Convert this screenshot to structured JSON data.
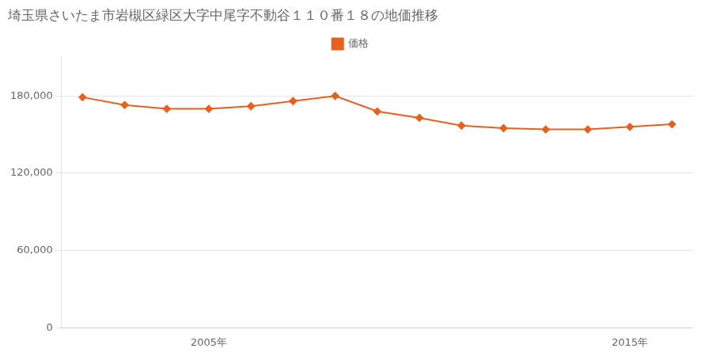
{
  "chart_data": {
    "type": "line",
    "title": "埼玉県さいたま市岩槻区緑区大字中尾字不動谷１１０番１８の地価推移",
    "x": [
      2002,
      2003,
      2004,
      2005,
      2006,
      2007,
      2008,
      2009,
      2010,
      2011,
      2012,
      2013,
      2014,
      2015,
      2016
    ],
    "series": [
      {
        "name": "価格",
        "color": "#e8601c",
        "marker": "diamond",
        "line_style": "solid",
        "values": [
          179000,
          173000,
          170000,
          170000,
          172000,
          176000,
          180000,
          168000,
          163000,
          157000,
          155000,
          154000,
          154000,
          156000,
          158000
        ]
      }
    ],
    "xlim": [
      2001.5,
      2016.5
    ],
    "xticks": [
      {
        "value": 2005,
        "label": "2005年"
      },
      {
        "value": 2015,
        "label": "2015年"
      }
    ],
    "ylim": [
      0,
      210000
    ],
    "yticks": [
      0,
      {
        "value": 60000,
        "label": "60,000"
      },
      {
        "value": 120000,
        "label": "120,000"
      },
      {
        "value": 180000,
        "label": "180,000"
      }
    ],
    "grid": "y",
    "legend": "top"
  }
}
